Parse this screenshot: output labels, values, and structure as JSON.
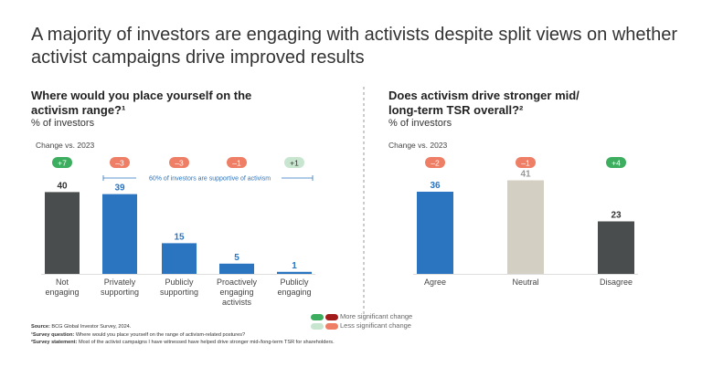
{
  "title": "A majority of investors are engaging with activists despite split views on whether activist campaigns drive improved results",
  "colors": {
    "more_pos": "#3dae5f",
    "more_neg": "#a31c1c",
    "less_pos": "#c8e6cf",
    "less_neg": "#ee7f66",
    "dark": "#4a4d4e",
    "blue": "#2a74c0",
    "neutral": "#d4cfc3"
  },
  "chart_data": [
    {
      "type": "bar",
      "title": "Where would you place yourself on the activism range?¹",
      "ylabel": "% of investors",
      "change_label": "Change vs. 2023",
      "categories": [
        "Not engaging",
        "Privately supporting",
        "Publicly supporting",
        "Proactively engaging activists",
        "Publicly engaging"
      ],
      "values": [
        40,
        39,
        15,
        5,
        1
      ],
      "changes": [
        "+7",
        "–3",
        "–3",
        "–1",
        "+1"
      ],
      "change_significance": [
        "more",
        "less",
        "less",
        "less",
        "less"
      ],
      "bar_colors": [
        "dark",
        "blue",
        "blue",
        "blue",
        "blue"
      ],
      "annotation": "60% of investors are supportive of activism",
      "ylim": [
        0,
        45
      ]
    },
    {
      "type": "bar",
      "title": "Does activism drive stronger mid/ long-term TSR overall?²",
      "ylabel": "% of investors",
      "change_label": "Change vs. 2023",
      "categories": [
        "Agree",
        "Neutral",
        "Disagree"
      ],
      "values": [
        36,
        41,
        23
      ],
      "changes": [
        "–2",
        "–1",
        "+4"
      ],
      "change_significance": [
        "less",
        "less",
        "more"
      ],
      "bar_colors": [
        "blue",
        "neutral",
        "dark"
      ],
      "ylim": [
        0,
        45
      ]
    }
  ],
  "legend": {
    "more": "More significant change",
    "less": "Less significant change"
  },
  "notes": {
    "source_label": "Source:",
    "source": "BCG Global Investor Survey, 2024.",
    "q_label": "¹Survey question:",
    "q": "Where would you place yourself on the range of activism-related postures?",
    "s_label": "²Survey statement:",
    "s": "Most of the activist campaigns I have witnessed have helped drive stronger mid-/long-term TSR for shareholders."
  }
}
